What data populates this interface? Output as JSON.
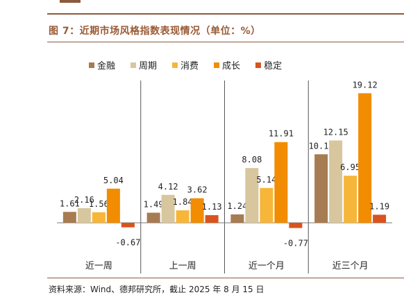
{
  "figure": {
    "title": "图 7：近期市场风格指数表现情况（单位：%）",
    "source": "资料来源：Wind、德邦研究所，截止 2025 年 8 月 15 日"
  },
  "chart_data": {
    "type": "bar",
    "title": "图 7：近期市场风格指数表现情况（单位：%）",
    "xlabel": "",
    "ylabel": "",
    "categories": [
      "近一周",
      "上一周",
      "近一个月",
      "近三个月"
    ],
    "ylim": [
      -1.5,
      21
    ],
    "grid": false,
    "legend_position": "top",
    "series": [
      {
        "name": "金融",
        "color": "#a67c52",
        "values": [
          1.61,
          1.49,
          1.24,
          10.11
        ]
      },
      {
        "name": "周期",
        "color": "#d8c69e",
        "values": [
          2.16,
          4.12,
          8.08,
          12.15
        ]
      },
      {
        "name": "消费",
        "color": "#f6b63a",
        "values": [
          1.56,
          1.84,
          5.14,
          6.95
        ]
      },
      {
        "name": "成长",
        "color": "#f28c00",
        "values": [
          5.04,
          3.62,
          11.91,
          19.12
        ]
      },
      {
        "name": "稳定",
        "color": "#d9531e",
        "values": [
          -0.67,
          1.13,
          -0.77,
          1.19
        ]
      }
    ]
  }
}
